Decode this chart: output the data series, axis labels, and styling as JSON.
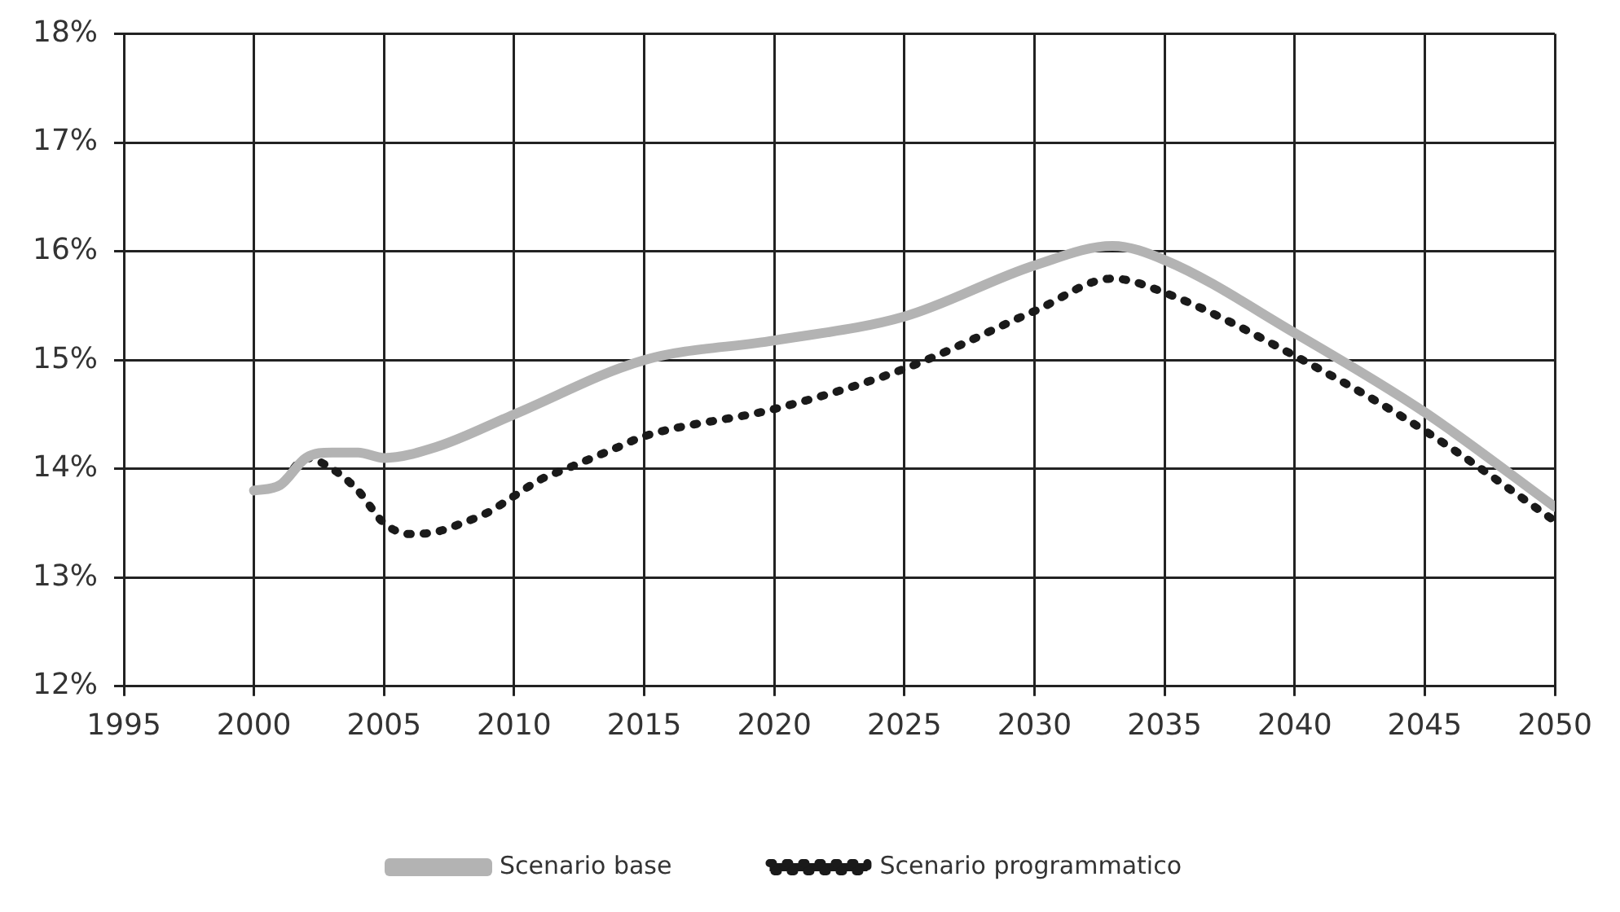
{
  "chart_data": {
    "type": "line",
    "series": [
      {
        "name": "Scenario base",
        "color": "#b3b3b3",
        "line_style": "solid",
        "x": [
          2000,
          2001,
          2002,
          2003,
          2004,
          2005,
          2007,
          2010,
          2015,
          2020,
          2025,
          2030,
          2033,
          2035,
          2040,
          2045,
          2050
        ],
        "values": [
          13.8,
          13.85,
          14.1,
          14.15,
          14.15,
          14.1,
          14.2,
          14.5,
          15.0,
          15.18,
          15.4,
          15.87,
          16.05,
          15.92,
          15.25,
          14.52,
          13.65
        ]
      },
      {
        "name": "Scenario programmatico",
        "color": "#1a1a1a",
        "line_style": "dotted",
        "x": [
          2000,
          2001,
          2002,
          2003,
          2004,
          2005,
          2006,
          2007,
          2008,
          2009,
          2010,
          2011,
          2012,
          2013,
          2014,
          2015,
          2020,
          2025,
          2030,
          2033,
          2035,
          2040,
          2045,
          2050
        ],
        "values": [
          13.8,
          13.85,
          14.1,
          14.0,
          13.8,
          13.5,
          13.4,
          13.42,
          13.5,
          13.6,
          13.75,
          13.9,
          14.0,
          14.1,
          14.2,
          14.3,
          14.55,
          14.92,
          15.45,
          15.75,
          15.62,
          15.04,
          14.35,
          13.52
        ]
      }
    ],
    "xlim": [
      1995,
      2050
    ],
    "xticks": [
      1995,
      2000,
      2005,
      2010,
      2015,
      2020,
      2025,
      2030,
      2035,
      2040,
      2045,
      2050
    ],
    "ylim": [
      12,
      18
    ],
    "yticks": [
      {
        "value": 12,
        "label": "12%"
      },
      {
        "value": 13,
        "label": "13%"
      },
      {
        "value": 14,
        "label": "14%"
      },
      {
        "value": 15,
        "label": "15%"
      },
      {
        "value": 16,
        "label": "16%"
      },
      {
        "value": 17,
        "label": "17%"
      },
      {
        "value": 18,
        "label": "18%"
      }
    ],
    "grid": true,
    "legend": "bottom",
    "marker": "none"
  }
}
